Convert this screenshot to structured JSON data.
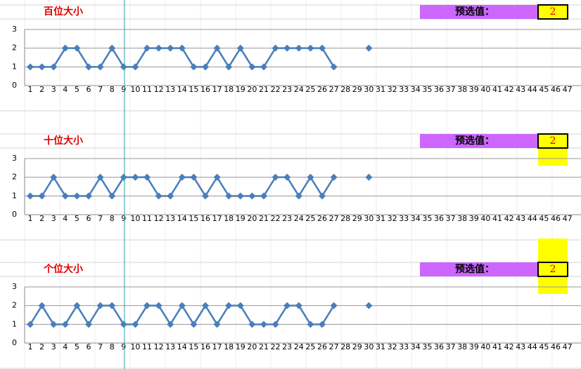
{
  "chart_data": [
    {
      "type": "line",
      "title": "百位大小",
      "preset_label": "预选值：",
      "preset_value": 2,
      "color": "#4a7ebb",
      "categories": [
        1,
        2,
        3,
        4,
        5,
        6,
        7,
        8,
        9,
        10,
        11,
        12,
        13,
        14,
        15,
        16,
        17,
        18,
        19,
        20,
        21,
        22,
        23,
        24,
        25,
        26,
        27,
        28,
        29,
        30,
        31,
        32,
        33,
        34,
        35,
        36,
        37,
        38,
        39,
        40,
        41,
        42,
        43,
        44,
        45,
        46,
        47
      ],
      "values": [
        1,
        1,
        1,
        2,
        2,
        1,
        1,
        2,
        1,
        1,
        2,
        2,
        2,
        2,
        1,
        1,
        2,
        1,
        2,
        1,
        1,
        2,
        2,
        2,
        2,
        2,
        1,
        null,
        null,
        2,
        null,
        null,
        null,
        null,
        null,
        null,
        null,
        null,
        null,
        null,
        null,
        null,
        null,
        null,
        null,
        null,
        null
      ],
      "ylim": [
        0,
        3
      ],
      "yticks": [
        0,
        1,
        2,
        3
      ],
      "grid": true
    },
    {
      "type": "line",
      "title": "十位大小",
      "preset_label": "预选值：",
      "preset_value": 2,
      "color": "#4a7ebb",
      "categories": [
        1,
        2,
        3,
        4,
        5,
        6,
        7,
        8,
        9,
        10,
        11,
        12,
        13,
        14,
        15,
        16,
        17,
        18,
        19,
        20,
        21,
        22,
        23,
        24,
        25,
        26,
        27,
        28,
        29,
        30,
        31,
        32,
        33,
        34,
        35,
        36,
        37,
        38,
        39,
        40,
        41,
        42,
        43,
        44,
        45,
        46,
        47
      ],
      "values": [
        1,
        1,
        2,
        1,
        1,
        1,
        2,
        1,
        2,
        2,
        2,
        1,
        1,
        2,
        2,
        1,
        2,
        1,
        1,
        1,
        1,
        2,
        2,
        1,
        2,
        1,
        2,
        null,
        null,
        2,
        null,
        null,
        null,
        null,
        null,
        null,
        null,
        null,
        null,
        null,
        null,
        null,
        null,
        null,
        null,
        null,
        null
      ],
      "ylim": [
        0,
        3
      ],
      "yticks": [
        0,
        1,
        2,
        3
      ],
      "grid": true
    },
    {
      "type": "line",
      "title": "个位大小",
      "preset_label": "预选值：",
      "preset_value": 2,
      "color": "#4a7ebb",
      "categories": [
        1,
        2,
        3,
        4,
        5,
        6,
        7,
        8,
        9,
        10,
        11,
        12,
        13,
        14,
        15,
        16,
        17,
        18,
        19,
        20,
        21,
        22,
        23,
        24,
        25,
        26,
        27,
        28,
        29,
        30,
        31,
        32,
        33,
        34,
        35,
        36,
        37,
        38,
        39,
        40,
        41,
        42,
        43,
        44,
        45,
        46,
        47
      ],
      "values": [
        1,
        2,
        1,
        1,
        2,
        1,
        2,
        2,
        1,
        1,
        2,
        2,
        1,
        2,
        1,
        2,
        1,
        2,
        2,
        1,
        1,
        1,
        2,
        2,
        1,
        1,
        2,
        null,
        null,
        2,
        null,
        null,
        null,
        null,
        null,
        null,
        null,
        null,
        null,
        null,
        null,
        null,
        null,
        null,
        null,
        null,
        null
      ],
      "ylim": [
        0,
        3
      ],
      "yticks": [
        0,
        1,
        2,
        3
      ],
      "grid": true
    }
  ]
}
